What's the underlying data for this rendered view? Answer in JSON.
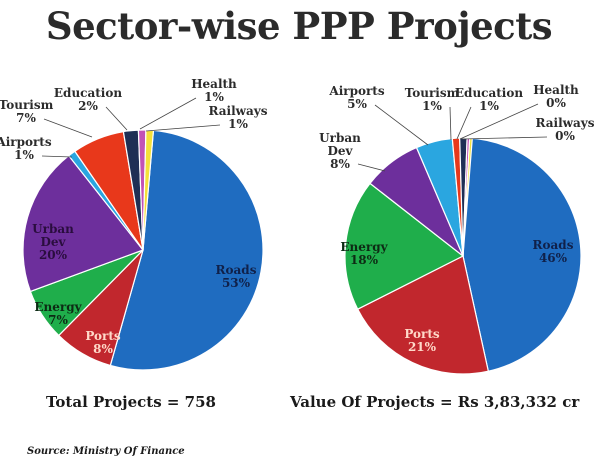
{
  "page": {
    "title": "Sector-wise PPP Projects",
    "source": "Source: Ministry Of Finance"
  },
  "chart_data": [
    {
      "type": "pie",
      "caption": "Total Projects = 758",
      "slices": [
        {
          "name": "Roads",
          "value": 53,
          "label": "53%",
          "color": "#1f6cc0"
        },
        {
          "name": "Ports",
          "value": 8,
          "label": "8%",
          "color": "#c1272d"
        },
        {
          "name": "Energy",
          "value": 7,
          "label": "7%",
          "color": "#1fae4b"
        },
        {
          "name": "Urban Dev",
          "value": 20,
          "label": "20%",
          "color": "#6d2f9c"
        },
        {
          "name": "Airports",
          "value": 1,
          "label": "1%",
          "color": "#2aa6e0"
        },
        {
          "name": "Tourism",
          "value": 7,
          "label": "7%",
          "color": "#e8381b"
        },
        {
          "name": "Education",
          "value": 2,
          "label": "2%",
          "color": "#1f2f55"
        },
        {
          "name": "Health",
          "value": 1,
          "label": "1%",
          "color": "#c252b6"
        },
        {
          "name": "Railways",
          "value": 1,
          "label": "1%",
          "color": "#f4e03a"
        }
      ]
    },
    {
      "type": "pie",
      "caption": "Value Of Projects = Rs 3,83,332 cr",
      "slices": [
        {
          "name": "Roads",
          "value": 46,
          "label": "46%",
          "color": "#1f6cc0"
        },
        {
          "name": "Ports",
          "value": 21,
          "label": "21%",
          "color": "#c1272d"
        },
        {
          "name": "Energy",
          "value": 18,
          "label": "18%",
          "color": "#1fae4b"
        },
        {
          "name": "Urban Dev",
          "value": 8,
          "label": "8%",
          "color": "#6d2f9c"
        },
        {
          "name": "Airports",
          "value": 5,
          "label": "5%",
          "color": "#2aa6e0"
        },
        {
          "name": "Tourism",
          "value": 1,
          "label": "1%",
          "color": "#e8381b"
        },
        {
          "name": "Education",
          "value": 1,
          "label": "1%",
          "color": "#1f2f55"
        },
        {
          "name": "Health",
          "value": 0,
          "label": "0%",
          "color": "#c252b6"
        },
        {
          "name": "Railways",
          "value": 0,
          "label": "0%",
          "color": "#f4e03a"
        }
      ]
    }
  ]
}
